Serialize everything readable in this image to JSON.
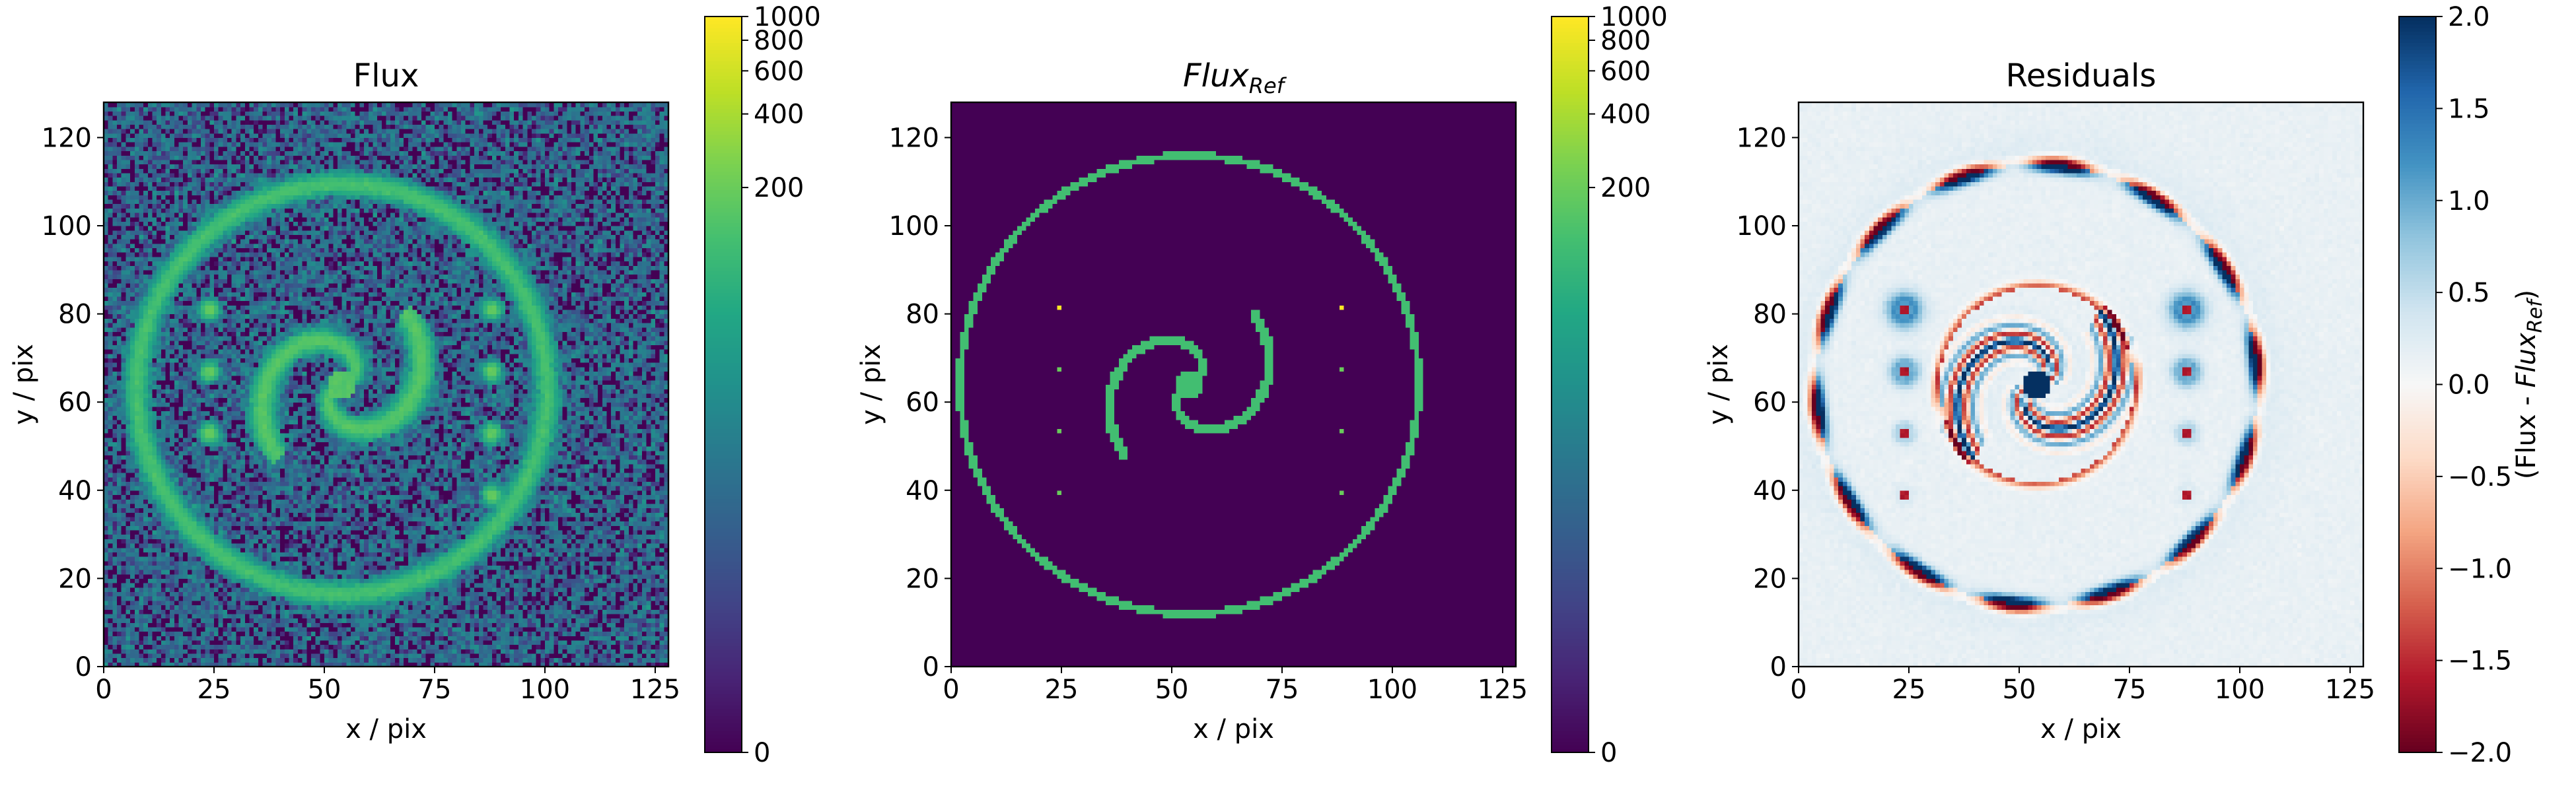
{
  "chart_data": [
    {
      "type": "heatmap",
      "title": "Flux",
      "title_sub": "",
      "title_italic": false,
      "xlabel": "x / pix",
      "ylabel": "y / pix",
      "xlim": [
        0,
        128
      ],
      "ylim": [
        0,
        128
      ],
      "xticks": [
        0,
        25,
        50,
        75,
        100,
        125
      ],
      "yticks": [
        0,
        20,
        40,
        60,
        80,
        100,
        120
      ],
      "colormap": "viridis",
      "colorbar": {
        "scale": "symlog",
        "range": [
          0,
          1000
        ],
        "ticks": [
          0,
          200,
          400,
          600,
          800,
          1000
        ],
        "label": "",
        "label_sub": "",
        "label_prefix": ""
      },
      "features": {
        "ring": {
          "center": [
            54,
            63
          ],
          "radius": 46.5,
          "value": 120
        },
        "spiral": {
          "center": [
            54,
            64
          ],
          "arms": 2,
          "max_radius": 22,
          "value": 150
        },
        "dots_left": {
          "x": 24,
          "y": [
            81,
            67,
            53
          ],
          "value": 200
        },
        "dots_right": {
          "x": 88,
          "y": [
            81,
            67,
            53,
            39
          ],
          "value": 200
        },
        "noise": true
      }
    },
    {
      "type": "heatmap",
      "title": "Flux",
      "title_sub": "Ref",
      "title_italic": true,
      "xlabel": "x / pix",
      "ylabel": "y / pix",
      "xlim": [
        0,
        128
      ],
      "ylim": [
        0,
        128
      ],
      "xticks": [
        0,
        25,
        50,
        75,
        100,
        125
      ],
      "yticks": [
        0,
        20,
        40,
        60,
        80,
        100,
        120
      ],
      "colormap": "viridis",
      "colorbar": {
        "scale": "symlog",
        "range": [
          0,
          1000
        ],
        "ticks": [
          0,
          200,
          400,
          600,
          800,
          1000
        ],
        "label": "",
        "label_sub": "",
        "label_prefix": ""
      },
      "features": {
        "ring": {
          "center": [
            54,
            64
          ],
          "radius": 52,
          "value": 120
        },
        "spiral": {
          "center": [
            54,
            64
          ],
          "arms": 2,
          "max_radius": 22,
          "value": 120
        },
        "points": [
          {
            "x": 24,
            "y": 81,
            "value": 1000
          },
          {
            "x": 24,
            "y": 67,
            "value": 200
          },
          {
            "x": 24,
            "y": 53,
            "value": 200
          },
          {
            "x": 24,
            "y": 39,
            "value": 200
          },
          {
            "x": 88,
            "y": 81,
            "value": 1000
          },
          {
            "x": 88,
            "y": 67,
            "value": 200
          },
          {
            "x": 88,
            "y": 53,
            "value": 200
          },
          {
            "x": 88,
            "y": 39,
            "value": 200
          }
        ],
        "noise": false
      }
    },
    {
      "type": "heatmap",
      "title": "Residuals",
      "title_sub": "",
      "title_italic": false,
      "xlabel": "x / pix",
      "ylabel": "y / pix",
      "xlim": [
        0,
        128
      ],
      "ylim": [
        0,
        128
      ],
      "xticks": [
        0,
        25,
        50,
        75,
        100,
        125
      ],
      "yticks": [
        0,
        20,
        40,
        60,
        80,
        100,
        120
      ],
      "colormap": "RdBu",
      "colorbar": {
        "scale": "linear",
        "range": [
          -2.0,
          2.0
        ],
        "ticks": [
          -2.0,
          -1.5,
          -1.0,
          -0.5,
          0.0,
          0.5,
          1.0,
          1.5,
          2.0
        ],
        "label": "",
        "label_prefix": "(Flux - ",
        "label_sub": "Ref",
        "label_suffix": ")"
      },
      "features": {
        "ring": {
          "center": [
            54,
            64
          ],
          "radius": 50
        },
        "spiral": {
          "center": [
            54,
            64
          ],
          "max_radius": 22
        },
        "dots_left": {
          "x": 24,
          "y": [
            81,
            67,
            53,
            39
          ]
        },
        "dots_right": {
          "x": 88,
          "y": [
            81,
            67,
            53,
            39
          ]
        }
      }
    }
  ]
}
